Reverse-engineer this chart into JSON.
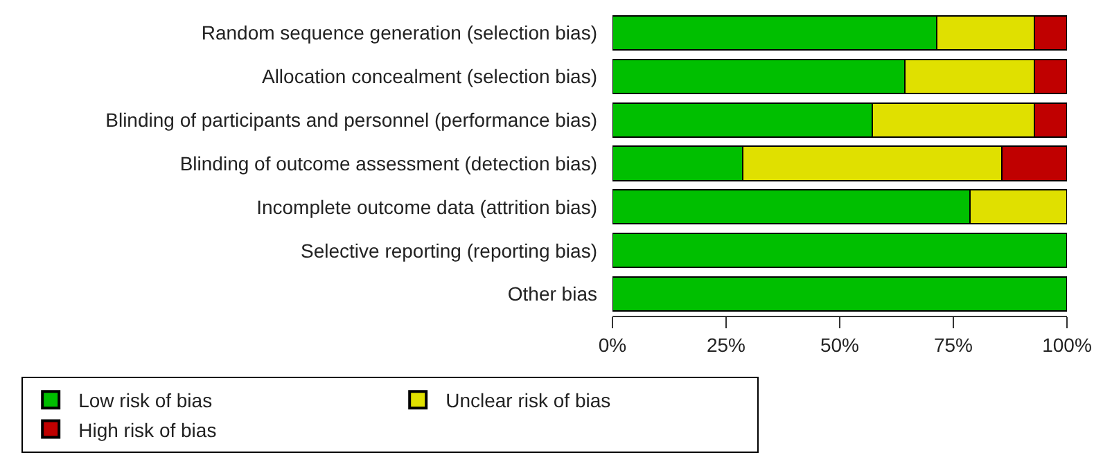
{
  "chart_data": {
    "type": "bar",
    "orientation": "horizontal",
    "stacked": true,
    "categories": [
      "Random sequence generation (selection bias)",
      "Allocation concealment (selection bias)",
      "Blinding of participants and personnel (performance bias)",
      "Blinding of outcome assessment (detection bias)",
      "Incomplete outcome data (attrition bias)",
      "Selective reporting (reporting bias)",
      "Other bias"
    ],
    "series": [
      {
        "name": "Low risk of bias",
        "color": "#00bf00",
        "values": [
          71.4,
          64.3,
          57.1,
          28.6,
          78.6,
          100,
          100
        ]
      },
      {
        "name": "Unclear risk of bias",
        "color": "#e0e000",
        "values": [
          21.5,
          28.6,
          35.8,
          57.1,
          21.4,
          null,
          null
        ]
      },
      {
        "name": "High risk of bias",
        "color": "#c00000",
        "values": [
          7.1,
          7.1,
          7.1,
          14.3,
          null,
          null,
          null
        ]
      }
    ],
    "xlim": [
      0,
      100
    ],
    "xticks": [
      {
        "value": 0,
        "label": "0%"
      },
      {
        "value": 25,
        "label": "25%"
      },
      {
        "value": 50,
        "label": "50%"
      },
      {
        "value": 75,
        "label": "75%"
      },
      {
        "value": 100,
        "label": "100%"
      }
    ],
    "legend": "bottom"
  }
}
